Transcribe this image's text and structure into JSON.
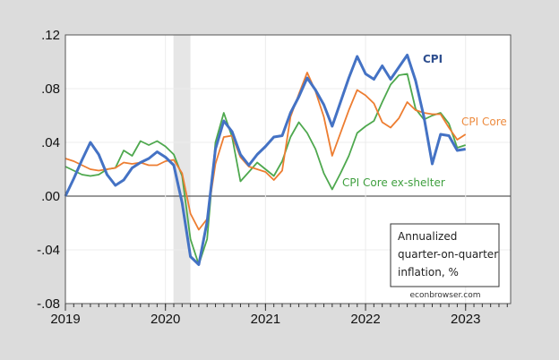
{
  "chart_data": {
    "type": "line",
    "title": "",
    "xlabel": "",
    "ylabel": "",
    "x_start": "2019-01",
    "frequency": "monthly",
    "xlim": [
      2019,
      2023.45
    ],
    "ylim": [
      -0.08,
      0.12
    ],
    "y_ticks": [
      ".12",
      ".08",
      ".04",
      ".00",
      "-.04",
      "-.08"
    ],
    "y_tick_values": [
      0.12,
      0.08,
      0.04,
      0.0,
      -0.04,
      -0.08
    ],
    "x_ticks": [
      "2019",
      "2020",
      "2021",
      "2022",
      "2023"
    ],
    "grid": true,
    "recession_shading": {
      "from": 2020.08,
      "to": 2020.25,
      "color": "#e6e6e6"
    },
    "series": [
      {
        "name": "CPI",
        "color": "#4472c4",
        "label_color": "#2f4f8f",
        "values": [
          0.0,
          0.013,
          0.027,
          0.04,
          0.031,
          0.016,
          0.008,
          0.012,
          0.021,
          0.025,
          0.028,
          0.033,
          0.029,
          0.023,
          -0.005,
          -0.045,
          -0.051,
          -0.019,
          0.035,
          0.056,
          0.048,
          0.031,
          0.023,
          0.031,
          0.037,
          0.044,
          0.045,
          0.062,
          0.074,
          0.088,
          0.079,
          0.068,
          0.052,
          0.07,
          0.088,
          0.104,
          0.091,
          0.087,
          0.097,
          0.087,
          0.096,
          0.105,
          0.086,
          0.059,
          0.024,
          0.046,
          0.045,
          0.034,
          0.035
        ]
      },
      {
        "name": "CPI Core",
        "color": "#ed7d31",
        "label_color": "#ed8b3f",
        "values": [
          0.028,
          0.026,
          0.023,
          0.02,
          0.019,
          0.02,
          0.021,
          0.025,
          0.024,
          0.025,
          0.023,
          0.023,
          0.026,
          0.027,
          0.017,
          -0.013,
          -0.025,
          -0.017,
          0.024,
          0.044,
          0.045,
          0.029,
          0.022,
          0.02,
          0.018,
          0.012,
          0.019,
          0.059,
          0.076,
          0.092,
          0.078,
          0.059,
          0.03,
          0.047,
          0.064,
          0.079,
          0.075,
          0.069,
          0.055,
          0.051,
          0.058,
          0.07,
          0.064,
          0.062,
          0.061,
          0.061,
          0.051,
          0.042,
          0.046
        ]
      },
      {
        "name": "CPI Core ex-shelter",
        "color": "#4ea84e",
        "label_color": "#3f9f3f",
        "values": [
          0.022,
          0.019,
          0.016,
          0.015,
          0.016,
          0.02,
          0.021,
          0.034,
          0.03,
          0.041,
          0.038,
          0.041,
          0.037,
          0.031,
          0.015,
          -0.032,
          -0.051,
          -0.032,
          0.04,
          0.062,
          0.044,
          0.011,
          0.018,
          0.025,
          0.02,
          0.015,
          0.026,
          0.044,
          0.055,
          0.047,
          0.035,
          0.017,
          0.005,
          0.017,
          0.03,
          0.047,
          0.052,
          0.056,
          0.07,
          0.083,
          0.09,
          0.091,
          0.065,
          0.057,
          0.06,
          0.062,
          0.054,
          0.036,
          0.038
        ]
      }
    ],
    "annotation": {
      "lines": [
        "Annualized",
        "quarter-on-quarter",
        "inflation, %"
      ]
    },
    "source": "econbrowser.com"
  }
}
